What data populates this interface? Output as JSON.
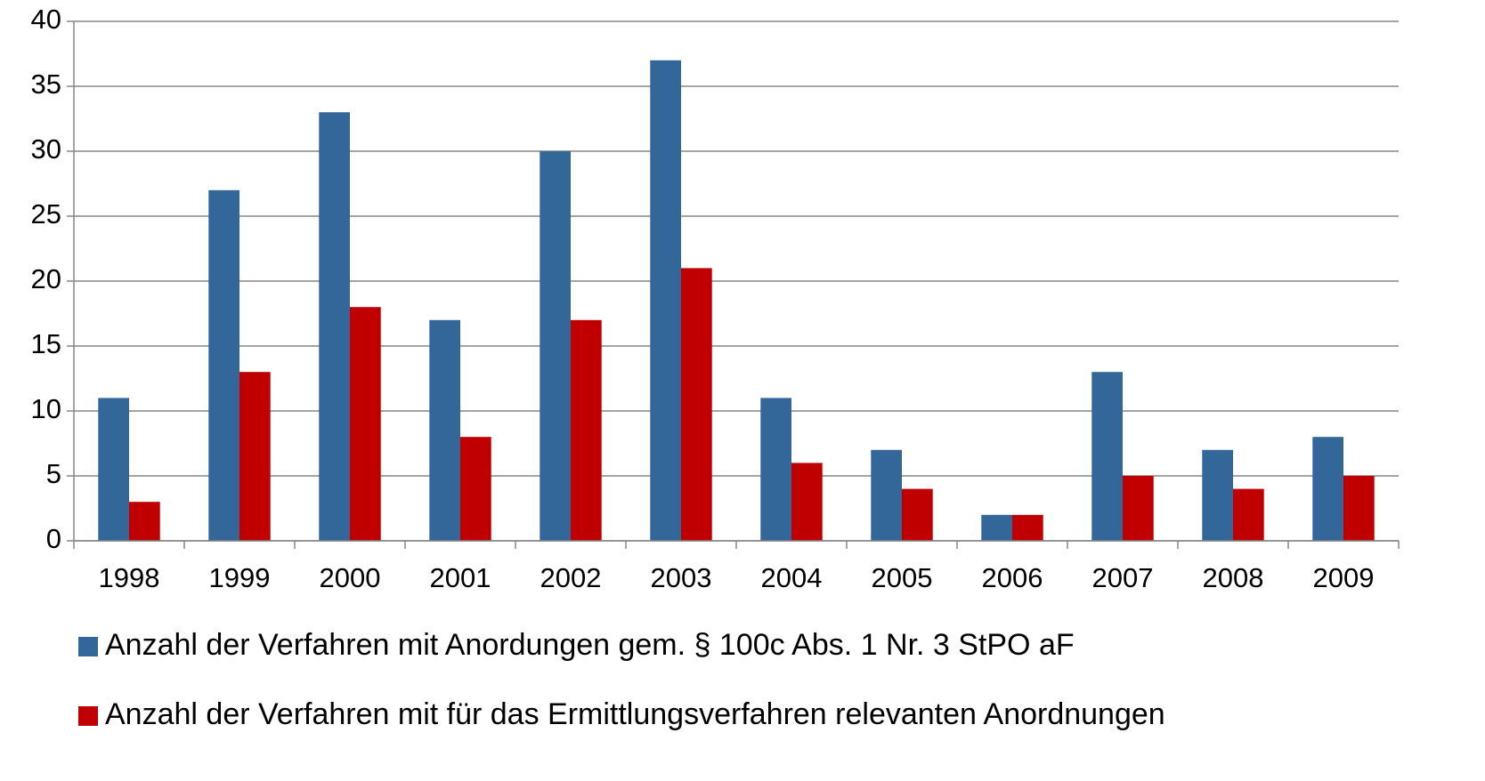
{
  "chart_data": {
    "type": "bar",
    "categories": [
      "1998",
      "1999",
      "2000",
      "2001",
      "2002",
      "2003",
      "2004",
      "2005",
      "2006",
      "2007",
      "2008",
      "2009"
    ],
    "series": [
      {
        "name": "Anzahl der Verfahren mit Anordungen gem. § 100c Abs. 1 Nr. 3 StPO aF",
        "color": "#336699",
        "values": [
          11,
          27,
          33,
          17,
          30,
          37,
          11,
          7,
          2,
          13,
          7,
          8
        ]
      },
      {
        "name": "Anzahl der Verfahren mit für das Ermittlungsverfahren relevanten Anordnungen",
        "color": "#c00000",
        "values": [
          3,
          13,
          18,
          8,
          17,
          21,
          6,
          4,
          2,
          5,
          4,
          5
        ]
      }
    ],
    "ylim": [
      0,
      40
    ],
    "yticks": [
      0,
      5,
      10,
      15,
      20,
      25,
      30,
      35,
      40
    ],
    "grid": true,
    "legend": "bottom"
  }
}
